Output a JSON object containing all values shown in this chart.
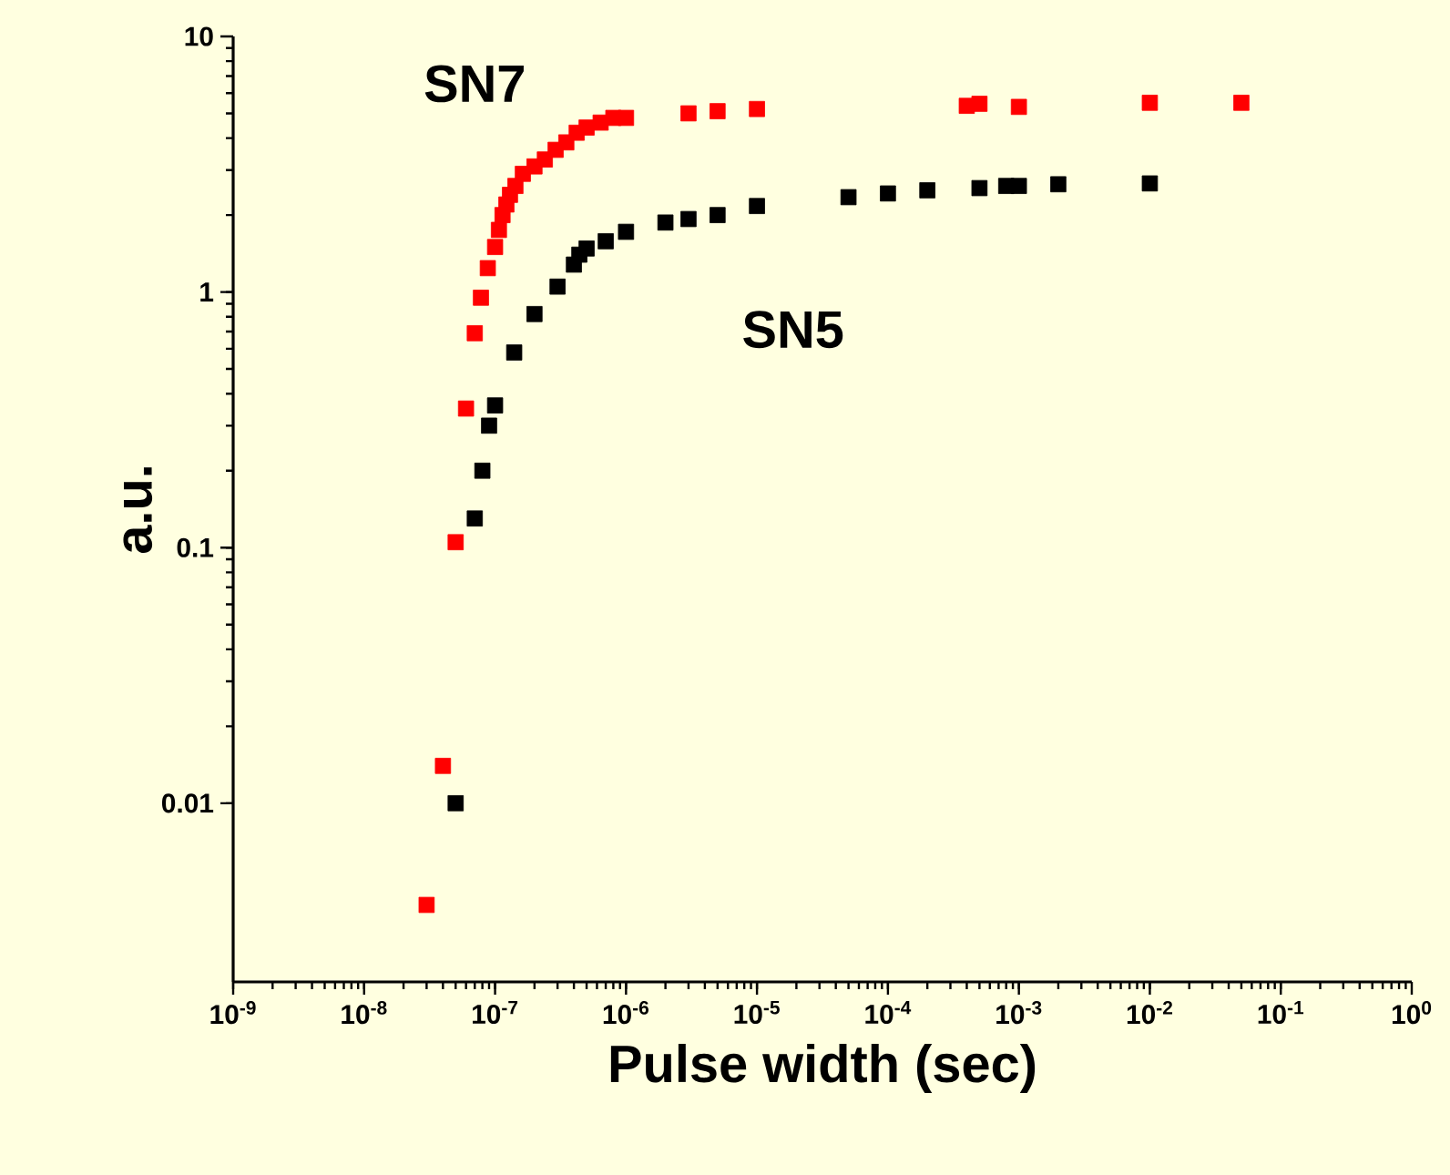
{
  "chart_data": {
    "type": "scatter",
    "xlabel": "Pulse width (sec)",
    "ylabel": "a.u.",
    "log": "xy",
    "marker": "square",
    "legend": false,
    "grid": false,
    "xlim": [
      1e-09,
      1
    ],
    "ylim": [
      0.002,
      10
    ],
    "xticks": [
      {
        "value": 1e-09,
        "label": "10$^{-9}$"
      },
      {
        "value": 1e-08,
        "label": "10$^{-8}$"
      },
      {
        "value": 1e-07,
        "label": "10$^{-7}$"
      },
      {
        "value": 1e-06,
        "label": "10$^{-6}$"
      },
      {
        "value": 1e-05,
        "label": "10$^{-5}$"
      },
      {
        "value": 0.0001,
        "label": "10$^{-4}$"
      },
      {
        "value": 0.001,
        "label": "10$^{-3}$"
      },
      {
        "value": 0.01,
        "label": "10$^{-2}$"
      },
      {
        "value": 0.1,
        "label": "10$^{-1}$"
      },
      {
        "value": 1,
        "label": "10$^{0}$"
      }
    ],
    "yticks": [
      0.01,
      0.1,
      1,
      10
    ],
    "series": [
      {
        "name": "SN7",
        "color": "#ff0000",
        "x": [
          3e-08,
          4e-08,
          5e-08,
          6e-08,
          7e-08,
          7.8e-08,
          8.8e-08,
          1e-07,
          1.07e-07,
          1.14e-07,
          1.22e-07,
          1.3e-07,
          1.43e-07,
          1.63e-07,
          2e-07,
          2.4e-07,
          2.9e-07,
          3.5e-07,
          4.2e-07,
          5e-07,
          6.4e-07,
          8e-07,
          1e-06,
          3e-06,
          5e-06,
          1e-05,
          0.0004,
          0.0005,
          0.001,
          0.01,
          0.05
        ],
        "values": [
          0.004,
          0.014,
          0.105,
          0.35,
          0.69,
          0.95,
          1.24,
          1.5,
          1.75,
          2.0,
          2.2,
          2.4,
          2.6,
          2.9,
          3.1,
          3.3,
          3.6,
          3.85,
          4.2,
          4.4,
          4.6,
          4.8,
          4.8,
          5.0,
          5.1,
          5.2,
          5.35,
          5.45,
          5.3,
          5.5,
          5.5
        ]
      },
      {
        "name": "SN5",
        "color": "#000000",
        "x": [
          5e-08,
          7e-08,
          8e-08,
          9e-08,
          1e-07,
          1.4e-07,
          2e-07,
          3e-07,
          4e-07,
          4.4e-07,
          5e-07,
          7e-07,
          9e-07,
          1e-06,
          2e-06,
          3e-06,
          5e-06,
          1e-05,
          5e-05,
          0.0001,
          0.0002,
          0.0005,
          0.0008,
          0.001,
          0.002,
          0.01
        ],
        "values": [
          0.01,
          0.13,
          0.2,
          0.3,
          0.36,
          0.58,
          0.82,
          1.05,
          1.28,
          1.4,
          1.48,
          1.58,
          null,
          1.72,
          1.87,
          1.93,
          2.0,
          2.17,
          2.35,
          2.43,
          2.5,
          2.55,
          2.6,
          2.6,
          2.64,
          2.66
        ]
      }
    ]
  }
}
